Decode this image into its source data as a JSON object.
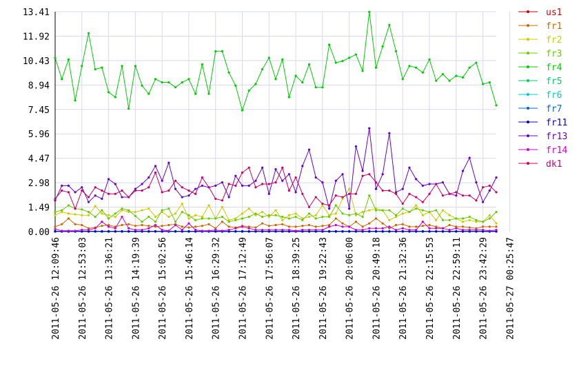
{
  "chart_data": {
    "type": "line",
    "title": "",
    "xlabel": "",
    "ylabel": "",
    "ylim": [
      0,
      13.41
    ],
    "y_ticks": [
      0.0,
      1.49,
      2.98,
      4.47,
      5.96,
      7.45,
      8.94,
      10.43,
      11.92,
      13.41
    ],
    "y_tick_labels": [
      "0.00",
      "1.49",
      "2.98",
      "4.47",
      "5.96",
      "7.45",
      "8.94",
      "10.43",
      "11.92",
      "13.41"
    ],
    "x_tick_labels": [
      "2011-05-26 12:09:46",
      "2011-05-26 12:53:03",
      "2011-05-26 13:36:21",
      "2011-05-26 14:19:39",
      "2011-05-26 15:02:56",
      "2011-05-26 15:46:14",
      "2011-05-26 16:29:32",
      "2011-05-26 17:12:49",
      "2011-05-26 17:56:07",
      "2011-05-26 18:39:25",
      "2011-05-26 19:22:43",
      "2011-05-26 20:06:00",
      "2011-05-26 20:49:18",
      "2011-05-26 21:32:36",
      "2011-05-26 22:15:53",
      "2011-05-26 22:59:11",
      "2011-05-26 23:42:29",
      "2011-05-27 00:25:47"
    ],
    "grid": true,
    "legend_position": "right",
    "num_points": 67,
    "series": [
      {
        "name": "us1",
        "color": "#cc0000",
        "values": [
          0,
          0,
          0,
          0,
          0,
          0,
          0,
          0,
          0,
          0,
          0,
          0,
          0,
          0,
          0,
          0,
          0,
          0,
          0,
          0,
          0,
          0,
          0,
          0,
          0,
          0,
          0,
          0,
          0,
          0,
          0,
          0,
          0,
          0,
          0,
          0,
          0,
          0,
          0,
          0,
          0,
          0,
          0,
          0,
          0,
          0,
          0,
          0,
          0,
          0,
          0,
          0,
          0,
          0,
          0,
          0,
          0,
          0,
          0,
          0,
          0,
          0,
          0,
          0,
          0,
          0,
          0
        ]
      },
      {
        "name": "fr1",
        "color": "#cc6600",
        "values": [
          0.3,
          0.45,
          0.8,
          0.45,
          0.4,
          0.2,
          0.25,
          0.35,
          0.4,
          0.3,
          0.4,
          0.45,
          0.35,
          0.4,
          0.35,
          0.3,
          0.35,
          0.4,
          0.45,
          0.3,
          0.25,
          0.3,
          0.35,
          0.45,
          0.2,
          0.6,
          0.3,
          0.25,
          0.35,
          0.3,
          0.25,
          0.5,
          0.35,
          0.4,
          0.45,
          0.3,
          0.3,
          0.35,
          0.4,
          0.3,
          0.35,
          0.4,
          0.8,
          0.5,
          0.3,
          0.6,
          0.3,
          0.5,
          0.8,
          0.5,
          0.2,
          0.4,
          0.45,
          0.3,
          0.3,
          0.35,
          0.4,
          0.3,
          0.2,
          0.4,
          0.3,
          0.3,
          0.25,
          0.2,
          0.3,
          0.3,
          0.3
        ]
      },
      {
        "name": "fr2",
        "color": "#cccc00",
        "values": [
          1.0,
          1.2,
          1.1,
          1.05,
          1.0,
          1.0,
          1.55,
          1.1,
          1.0,
          0.9,
          1.3,
          1.2,
          1.2,
          1.3,
          1.4,
          0.9,
          1.2,
          0.9,
          1.1,
          1.7,
          0.8,
          1.0,
          0.9,
          1.6,
          0.8,
          1.5,
          0.7,
          0.8,
          1.1,
          1.4,
          1.0,
          1.2,
          0.9,
          1.3,
          0.7,
          1.0,
          1.1,
          0.8,
          0.9,
          1.0,
          1.6,
          1.0,
          1.1,
          2.0,
          2.6,
          1.0,
          1.2,
          1.3,
          1.4,
          1.3,
          0.7,
          0.9,
          1.1,
          1.2,
          1.6,
          1.0,
          1.2,
          0.7,
          1.3,
          1.0,
          0.8,
          0.6,
          0.7,
          0.6,
          0.6,
          1.0,
          0.5
        ]
      },
      {
        "name": "fr3",
        "color": "#66cc00",
        "values": [
          1.2,
          1.3,
          1.6,
          1.4,
          1.35,
          1.2,
          0.9,
          1.3,
          0.8,
          1.1,
          1.4,
          1.3,
          0.95,
          0.6,
          0.9,
          0.6,
          1.3,
          1.4,
          0.6,
          1.2,
          1.0,
          0.7,
          0.8,
          0.8,
          0.8,
          0.9,
          0.6,
          0.7,
          0.8,
          0.9,
          1.1,
          0.9,
          1.0,
          1.0,
          0.9,
          0.8,
          0.9,
          0.7,
          1.1,
          0.8,
          0.9,
          0.9,
          1.6,
          1.1,
          1.0,
          1.1,
          0.9,
          2.2,
          1.3,
          1.3,
          1.3,
          1.0,
          1.4,
          1.2,
          1.4,
          1.3,
          1.2,
          1.3,
          0.7,
          0.7,
          0.8,
          0.8,
          0.9,
          0.7,
          0.6,
          0.8,
          1.2
        ]
      },
      {
        "name": "fr4",
        "color": "#00cc00",
        "values": [
          10.6,
          9.3,
          10.5,
          8.0,
          10.1,
          12.1,
          9.9,
          10.0,
          8.5,
          8.2,
          10.1,
          7.5,
          10.1,
          8.9,
          8.4,
          9.3,
          9.1,
          9.1,
          8.8,
          9.1,
          9.3,
          8.4,
          10.2,
          8.4,
          11.0,
          11.0,
          9.7,
          8.9,
          7.4,
          8.6,
          9.0,
          9.9,
          10.6,
          9.3,
          10.5,
          8.2,
          9.5,
          9.1,
          10.2,
          8.8,
          8.8,
          11.4,
          10.3,
          10.4,
          10.6,
          10.8,
          9.8,
          13.4,
          10.0,
          11.3,
          12.6,
          11.0,
          9.3,
          10.1,
          10.0,
          9.7,
          10.5,
          9.2,
          9.6,
          9.2,
          9.5,
          9.4,
          10.0,
          10.3,
          9.0,
          9.1,
          7.7
        ]
      },
      {
        "name": "fr5",
        "color": "#00cc66",
        "values": [
          0,
          0,
          0,
          0,
          0,
          0,
          0,
          0,
          0,
          0,
          0,
          0,
          0,
          0,
          0,
          0,
          0,
          0,
          0,
          0,
          0,
          0,
          0,
          0,
          0,
          0,
          0,
          0,
          0,
          0,
          0,
          0,
          0,
          0,
          0,
          0,
          0,
          0,
          0,
          0,
          0,
          0,
          0,
          0,
          0,
          0,
          0,
          0,
          0,
          0,
          0,
          0,
          0,
          0,
          0,
          0,
          0,
          0,
          0,
          0,
          0,
          0,
          0,
          0,
          0,
          0,
          0
        ]
      },
      {
        "name": "fr6",
        "color": "#00cccc",
        "values": [
          0,
          0,
          0,
          0,
          0,
          0,
          0,
          0,
          0,
          0,
          0,
          0,
          0,
          0,
          0,
          0,
          0,
          0,
          0,
          0,
          0,
          0,
          0,
          0,
          0,
          0,
          0,
          0,
          0,
          0,
          0,
          0,
          0,
          0,
          0,
          0,
          0,
          0,
          0,
          0,
          0,
          0,
          0,
          0,
          0,
          0,
          0,
          0,
          0,
          0,
          0,
          0,
          0,
          0,
          0,
          0,
          0,
          0,
          0,
          0,
          0,
          0,
          0,
          0,
          0,
          0,
          0
        ]
      },
      {
        "name": "fr7",
        "color": "#0066cc",
        "values": [
          0,
          0,
          0,
          0,
          0,
          0,
          0,
          0,
          0,
          0,
          0,
          0,
          0,
          0,
          0,
          0,
          0,
          0,
          0,
          0,
          0,
          0,
          0,
          0,
          0,
          0,
          0,
          0,
          0,
          0,
          0,
          0,
          0,
          0,
          0,
          0,
          0,
          0,
          0,
          0,
          0,
          0,
          0,
          0,
          0,
          0,
          0,
          0,
          0,
          0,
          0,
          0,
          0,
          0,
          0,
          0,
          0,
          0,
          0,
          0,
          0,
          0,
          0,
          0,
          0,
          0,
          0
        ]
      },
      {
        "name": "fr11",
        "color": "#0000cc",
        "values": [
          0.02,
          0.02,
          0.02,
          0.02,
          0.02,
          0.02,
          0.02,
          0.02,
          0.02,
          0.02,
          0.02,
          0.02,
          0.02,
          0.02,
          0.02,
          0.02,
          0.02,
          0.02,
          0.02,
          0.02,
          0.02,
          0.02,
          0.02,
          0.02,
          0.02,
          0.02,
          0.02,
          0.02,
          0.02,
          0.02,
          0.02,
          0.02,
          0.02,
          0.02,
          0.02,
          0.02,
          0.02,
          0.02,
          0.02,
          0.02,
          0.02,
          0.02,
          0.02,
          0.02,
          0.02,
          0.02,
          0.02,
          0.02,
          0.02,
          0.02,
          0.02,
          0.02,
          0.02,
          0.02,
          0.02,
          0.02,
          0.02,
          0.02,
          0.02,
          0.02,
          0.02,
          0.02,
          0.02,
          0.02,
          0.02,
          0.02,
          0.02
        ]
      },
      {
        "name": "fr13",
        "color": "#6600cc",
        "values": [
          1.9,
          2.8,
          2.8,
          2.4,
          2.7,
          1.8,
          2.2,
          2.0,
          3.2,
          2.9,
          2.1,
          2.1,
          2.6,
          2.9,
          3.3,
          4.0,
          3.1,
          4.2,
          2.6,
          2.1,
          2.2,
          2.6,
          2.8,
          2.7,
          2.8,
          3.0,
          2.1,
          3.4,
          2.8,
          2.8,
          3.1,
          3.9,
          2.3,
          3.8,
          3.1,
          3.5,
          2.4,
          4.0,
          5.0,
          3.3,
          3.0,
          1.4,
          3.1,
          3.5,
          1.4,
          5.2,
          3.7,
          6.3,
          2.6,
          3.5,
          6.0,
          2.4,
          2.6,
          3.9,
          3.2,
          2.8,
          2.9,
          2.9,
          3.0,
          2.3,
          2.2,
          3.7,
          4.5,
          3.0,
          1.8,
          2.5,
          3.3
        ]
      },
      {
        "name": "fr14",
        "color": "#cc00cc",
        "values": [
          0.15,
          0.05,
          0.05,
          0.05,
          0.1,
          0.1,
          0.2,
          0.6,
          0.3,
          0.2,
          0.9,
          0.2,
          0.1,
          0.1,
          0.2,
          0.4,
          0.1,
          0.05,
          0.4,
          0.1,
          0.5,
          0.1,
          0.05,
          0.05,
          0.1,
          0.05,
          0.1,
          0.2,
          0.3,
          0.2,
          0.1,
          0.1,
          0.1,
          0.1,
          0.1,
          0.1,
          0.05,
          0.1,
          0.1,
          0.1,
          0.1,
          0.3,
          0.4,
          0.3,
          0.3,
          0.1,
          0.1,
          0.2,
          0.2,
          0.2,
          0.3,
          0.1,
          0.2,
          0.1,
          0.1,
          0.6,
          0.2,
          0.2,
          0.2,
          0.1,
          0.2,
          0.1,
          0.1,
          0.1,
          0.1,
          0.05,
          0.1
        ]
      },
      {
        "name": "dk1",
        "color": "#cc0066",
        "values": [
          2.0,
          2.5,
          2.4,
          1.4,
          2.5,
          2.1,
          2.7,
          2.5,
          2.3,
          2.3,
          2.5,
          2.1,
          2.5,
          2.5,
          2.7,
          3.6,
          2.4,
          2.5,
          3.1,
          2.7,
          2.5,
          2.3,
          3.3,
          2.7,
          2.0,
          1.9,
          2.9,
          2.8,
          3.6,
          3.9,
          2.7,
          2.9,
          2.9,
          3.0,
          3.9,
          2.5,
          3.3,
          2.3,
          1.5,
          2.1,
          1.7,
          1.6,
          2.2,
          2.1,
          2.3,
          2.3,
          3.4,
          3.5,
          3.0,
          2.5,
          2.5,
          2.3,
          1.7,
          2.3,
          2.1,
          1.8,
          2.3,
          2.9,
          2.2,
          2.3,
          2.4,
          2.2,
          2.2,
          1.9,
          2.7,
          2.8,
          2.4
        ]
      }
    ]
  }
}
